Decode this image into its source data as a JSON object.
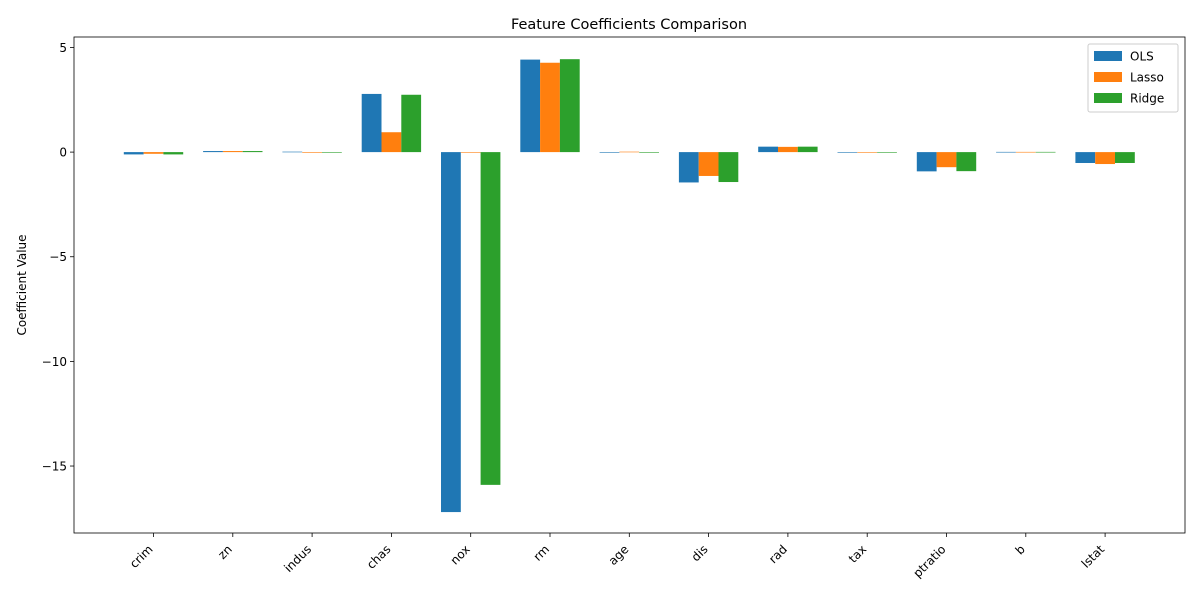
{
  "chart_data": {
    "type": "bar",
    "title": "Feature Coefficients Comparison",
    "xlabel": "",
    "ylabel": "Coefficient Value",
    "ylim": [
      -18.2,
      5.5
    ],
    "yticks": [
      5,
      0,
      -5,
      -10,
      -15
    ],
    "ytick_labels": [
      "5",
      "0",
      "−5",
      "−10",
      "−15"
    ],
    "grid": false,
    "legend_position": "top-right",
    "categories": [
      "crim",
      "zn",
      "indus",
      "chas",
      "nox",
      "rm",
      "age",
      "dis",
      "rad",
      "tax",
      "ptratio",
      "b",
      "lstat"
    ],
    "series": [
      {
        "name": "OLS",
        "color": "#1f77b4",
        "values": [
          -0.11,
          0.05,
          0.02,
          2.78,
          -17.2,
          4.42,
          0.0,
          -1.45,
          0.26,
          -0.01,
          -0.92,
          0.01,
          -0.52
        ]
      },
      {
        "name": "Lasso",
        "color": "#ff7f0e",
        "values": [
          -0.08,
          0.05,
          -0.03,
          0.95,
          0.0,
          4.27,
          0.02,
          -1.14,
          0.25,
          -0.01,
          -0.72,
          0.01,
          -0.57
        ]
      },
      {
        "name": "Ridge",
        "color": "#2ca02c",
        "values": [
          -0.11,
          0.05,
          0.0,
          2.74,
          -15.9,
          4.44,
          0.0,
          -1.43,
          0.26,
          -0.01,
          -0.91,
          0.01,
          -0.52
        ]
      }
    ]
  }
}
